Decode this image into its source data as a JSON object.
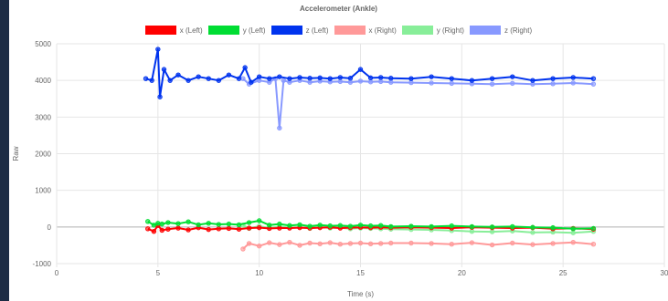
{
  "chart_data": {
    "type": "line",
    "title": "Accelerometer (Ankle)",
    "xlabel": "Time (s)",
    "ylabel": "Raw",
    "xlim": [
      0,
      30
    ],
    "ylim": [
      -1000,
      5000
    ],
    "xticks": [
      "0",
      "5",
      "10",
      "15",
      "20",
      "25",
      "30"
    ],
    "yticks": [
      "-1000",
      "0",
      "1000",
      "2000",
      "3000",
      "4000",
      "5000"
    ],
    "grid": true,
    "legend": "top",
    "series": [
      {
        "name": "x (Left)",
        "color": "#ff0000",
        "x": [
          4.5,
          4.8,
          5.0,
          5.2,
          5.5,
          6.0,
          6.5,
          7.0,
          7.5,
          8.0,
          8.5,
          9.0,
          9.5,
          10.0,
          10.5,
          11.0,
          11.5,
          12.0,
          12.5,
          13.0,
          13.5,
          14.0,
          14.5,
          15.0,
          15.5,
          16.0,
          16.5,
          17.5,
          18.5,
          19.5,
          20.5,
          21.5,
          22.5,
          23.5,
          24.5,
          25.5,
          26.5
        ],
        "y": [
          -50,
          -120,
          40,
          -90,
          -60,
          -30,
          -80,
          -20,
          -70,
          -50,
          -40,
          -60,
          -30,
          -20,
          -40,
          -30,
          -30,
          -20,
          -30,
          -20,
          -10,
          -30,
          -20,
          -10,
          -20,
          -10,
          -20,
          -10,
          -20,
          -30,
          -10,
          -20,
          -30,
          -20,
          -50,
          -40,
          -60
        ]
      },
      {
        "name": "y (Left)",
        "color": "#00dd33",
        "x": [
          4.5,
          4.8,
          5.0,
          5.2,
          5.5,
          6.0,
          6.5,
          7.0,
          7.5,
          8.0,
          8.5,
          9.0,
          9.5,
          10.0,
          10.5,
          11.0,
          11.5,
          12.0,
          12.5,
          13.0,
          13.5,
          14.0,
          14.5,
          15.0,
          15.5,
          16.0,
          16.5,
          17.5,
          18.5,
          19.5,
          20.5,
          21.5,
          22.5,
          23.5,
          24.5,
          25.5,
          26.5
        ],
        "y": [
          150,
          50,
          100,
          80,
          120,
          90,
          140,
          60,
          100,
          70,
          80,
          60,
          120,
          170,
          50,
          80,
          40,
          60,
          20,
          50,
          30,
          40,
          20,
          50,
          30,
          40,
          10,
          20,
          10,
          30,
          10,
          0,
          10,
          -10,
          -20,
          -50,
          -40
        ]
      },
      {
        "name": "z (Left)",
        "color": "#0033ee",
        "x": [
          4.4,
          4.7,
          5.0,
          5.1,
          5.3,
          5.6,
          6.0,
          6.5,
          7.0,
          7.5,
          8.0,
          8.5,
          9.0,
          9.3,
          9.6,
          10.0,
          10.5,
          11.0,
          11.5,
          12.0,
          12.5,
          13.0,
          13.5,
          14.0,
          14.5,
          15.0,
          15.5,
          16.0,
          16.5,
          17.5,
          18.5,
          19.5,
          20.5,
          21.5,
          22.5,
          23.5,
          24.5,
          25.5,
          26.5
        ],
        "y": [
          4050,
          4000,
          4850,
          3550,
          4300,
          4000,
          4150,
          4000,
          4100,
          4050,
          4000,
          4150,
          4050,
          4350,
          3950,
          4100,
          4050,
          4100,
          4050,
          4080,
          4060,
          4070,
          4050,
          4080,
          4060,
          4300,
          4070,
          4080,
          4060,
          4050,
          4100,
          4050,
          4000,
          4050,
          4100,
          4000,
          4050,
          4080,
          4050
        ]
      },
      {
        "name": "x (Right)",
        "color": "#ff9999",
        "x": [
          9.2,
          9.5,
          10.0,
          10.5,
          11.0,
          11.5,
          12.0,
          12.5,
          13.0,
          13.5,
          14.0,
          14.5,
          15.0,
          15.5,
          16.0,
          16.5,
          17.5,
          18.5,
          19.5,
          20.5,
          21.5,
          22.5,
          23.5,
          24.5,
          25.5,
          26.5
        ],
        "y": [
          -600,
          -450,
          -520,
          -430,
          -480,
          -420,
          -500,
          -440,
          -460,
          -430,
          -470,
          -450,
          -440,
          -460,
          -450,
          -440,
          -440,
          -450,
          -470,
          -430,
          -490,
          -440,
          -480,
          -450,
          -420,
          -470
        ]
      },
      {
        "name": "y (Right)",
        "color": "#88ee99",
        "x": [
          9.2,
          9.5,
          10.0,
          10.5,
          11.0,
          11.5,
          12.0,
          12.5,
          13.0,
          13.5,
          14.0,
          14.5,
          15.0,
          15.5,
          16.0,
          16.5,
          17.5,
          18.5,
          19.5,
          20.5,
          21.5,
          22.5,
          23.5,
          24.5,
          25.5,
          26.5
        ],
        "y": [
          50,
          -40,
          20,
          -30,
          10,
          -20,
          -10,
          -40,
          0,
          -30,
          -20,
          -50,
          -30,
          -40,
          -50,
          -60,
          -70,
          -80,
          -100,
          -120,
          -130,
          -110,
          -150,
          -140,
          -160,
          -120
        ]
      },
      {
        "name": "z (Right)",
        "color": "#8899ff",
        "x": [
          9.2,
          9.5,
          10.0,
          10.5,
          10.8,
          11.0,
          11.2,
          11.5,
          12.0,
          12.5,
          13.0,
          13.5,
          14.0,
          14.5,
          15.0,
          15.5,
          16.0,
          16.5,
          17.5,
          18.5,
          19.5,
          20.5,
          21.5,
          22.5,
          23.5,
          24.5,
          25.5,
          26.5
        ],
        "y": [
          4050,
          3900,
          4000,
          3950,
          4050,
          2700,
          4000,
          3950,
          4000,
          3950,
          3980,
          3960,
          3970,
          3950,
          3980,
          3960,
          3970,
          3950,
          3940,
          3930,
          3920,
          3910,
          3900,
          3920,
          3900,
          3910,
          3930,
          3900
        ]
      }
    ]
  }
}
